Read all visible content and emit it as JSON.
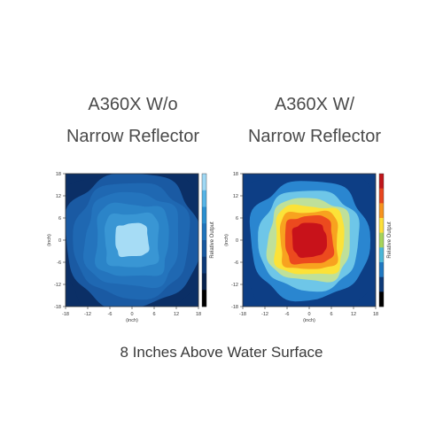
{
  "titles": {
    "left_line1": "A360X W/o",
    "left_line2": "Narrow Reflector",
    "right_line1": "A360X W/",
    "right_line2": "Narrow Reflector"
  },
  "caption": "8 Inches Above Water Surface",
  "chart_data": [
    {
      "type": "heatmap",
      "title": "A360X W/o Narrow Reflector",
      "xlabel": "(inch)",
      "ylabel": "(inch)",
      "colorbar_label": "Relative Output",
      "xlim": [
        -18,
        18
      ],
      "ylim": [
        -18,
        18
      ],
      "xticks": [
        -18,
        -12,
        -6,
        0,
        6,
        12,
        18
      ],
      "yticks": [
        18,
        12,
        6,
        0,
        -6,
        -12,
        -18
      ],
      "xtick_labels": [
        "-18",
        "-12",
        "-6",
        "0",
        "6",
        "12",
        "18"
      ],
      "ytick_labels": [
        "18",
        "12",
        "6",
        "0",
        "-6",
        "-12",
        "-18"
      ],
      "colorbar_colors": [
        "#9fd8f4",
        "#56b4e6",
        "#2a8fd0",
        "#1f74bc",
        "#17589f",
        "#0d3a78",
        "#07224d",
        "#000000"
      ],
      "contour_levels": [
        {
          "radius": 20.0,
          "color": "#0b2f66"
        },
        {
          "radius": 17.5,
          "color": "#1a5aa3"
        },
        {
          "radius": 15.0,
          "color": "#1f68b2"
        },
        {
          "radius": 12.5,
          "color": "#2474bd"
        },
        {
          "radius": 10.0,
          "color": "#2b84c8"
        },
        {
          "radius": 7.5,
          "color": "#3996d4"
        },
        {
          "radius": 4.5,
          "color": "#a6dcf5"
        }
      ]
    },
    {
      "type": "heatmap",
      "title": "A360X W/ Narrow Reflector",
      "xlabel": "(inch)",
      "ylabel": "(inch)",
      "colorbar_label": "Relative Output",
      "xlim": [
        -18,
        18
      ],
      "ylim": [
        -18,
        18
      ],
      "xticks": [
        -18,
        -12,
        -6,
        0,
        6,
        12,
        18
      ],
      "yticks": [
        18,
        12,
        6,
        0,
        -6,
        -12,
        -18
      ],
      "xtick_labels": [
        "-18",
        "-12",
        "-6",
        "0",
        "6",
        "12",
        "18"
      ],
      "ytick_labels": [
        "18",
        "12",
        "6",
        "0",
        "-6",
        "-12",
        "-18"
      ],
      "colorbar_colors": [
        "#c0161b",
        "#e8461f",
        "#f7931e",
        "#fde03a",
        "#a7d45a",
        "#4bb7d8",
        "#1f78c2",
        "#0d3a78",
        "#000000"
      ],
      "contour_levels": [
        {
          "radius": 20.0,
          "color": "#0d3e85"
        },
        {
          "radius": 15.5,
          "color": "#2a86d0"
        },
        {
          "radius": 13.0,
          "color": "#6ec6e8"
        },
        {
          "radius": 11.0,
          "color": "#bfe09a"
        },
        {
          "radius": 9.5,
          "color": "#fce238"
        },
        {
          "radius": 8.0,
          "color": "#f8a21f"
        },
        {
          "radius": 6.5,
          "color": "#ec4a1e"
        },
        {
          "radius": 4.5,
          "color": "#c8121a"
        }
      ]
    }
  ]
}
